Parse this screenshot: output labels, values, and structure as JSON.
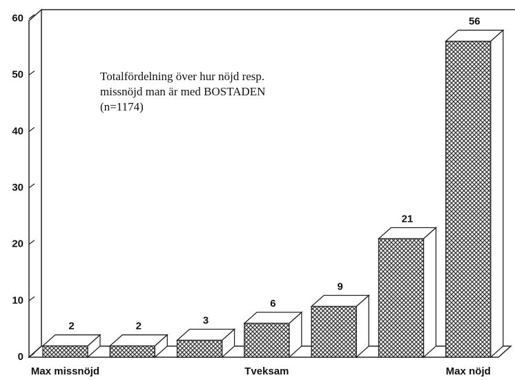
{
  "chart_data": {
    "type": "bar",
    "annotation": [
      "Totalfördelning över hur nöjd resp.",
      "missnöjd man är med BOSTADEN",
      "(n=1174)"
    ],
    "categories": [
      "Max missnöjd",
      null,
      null,
      "Tveksam",
      null,
      null,
      "Max nöjd"
    ],
    "values": [
      2,
      2,
      3,
      6,
      9,
      21,
      56
    ],
    "color": "#555555",
    "ylim": [
      0,
      60
    ],
    "yticks": [
      0,
      10,
      20,
      30,
      40,
      50,
      60
    ],
    "grid": false
  }
}
